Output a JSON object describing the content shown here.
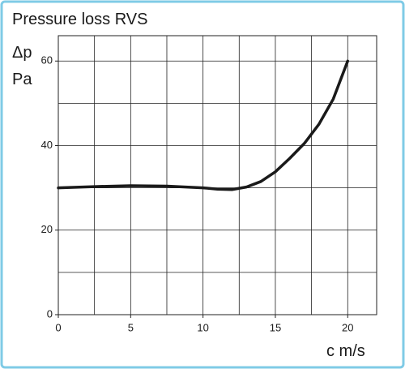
{
  "chart_data": {
    "type": "line",
    "title": "Pressure loss RVS",
    "y_label": [
      "Δp",
      "Pa"
    ],
    "x_label": "c m/s",
    "x": [
      0,
      2.5,
      5,
      7.5,
      10,
      11,
      12,
      13,
      14,
      15,
      16,
      17,
      18,
      19,
      20
    ],
    "series": [
      {
        "color": "#1a1a1a",
        "values": [
          30,
          30.3,
          30.5,
          30.4,
          30,
          29.7,
          29.6,
          30.2,
          31.5,
          33.8,
          37,
          40.5,
          45,
          51,
          60
        ]
      }
    ],
    "xlim": [
      0,
      22
    ],
    "ylim": [
      0,
      66
    ],
    "xticks": [
      0,
      5,
      10,
      15,
      20
    ],
    "yticks": [
      0,
      20,
      40,
      60
    ],
    "grid": true,
    "grid_step_x": 2.5,
    "grid_step_y": 10
  }
}
